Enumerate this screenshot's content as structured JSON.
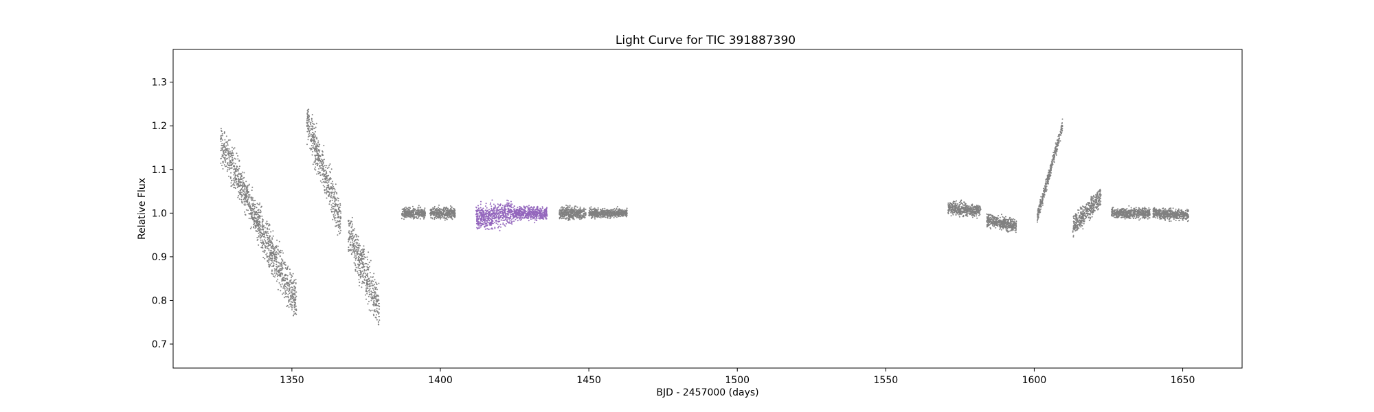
{
  "chart_data": {
    "type": "scatter",
    "title": "Light Curve for TIC 391887390",
    "xlabel": "BJD - 2457000 (days)",
    "ylabel": "Relative Flux",
    "xlim": [
      1310,
      1670
    ],
    "ylim": [
      0.645,
      1.375
    ],
    "xticks": [
      1350,
      1400,
      1450,
      1500,
      1550,
      1600,
      1650
    ],
    "yticks": [
      0.7,
      0.8,
      0.9,
      1.0,
      1.1,
      1.2,
      1.3
    ],
    "grid": false,
    "colors": {
      "data": "#808080",
      "highlight": "#9467bd"
    },
    "series": [
      {
        "color": "#808080",
        "segments": [
          {
            "x_start": 1326.0,
            "x_end": 1339.5,
            "y_start": 1.16,
            "y_end": 0.97,
            "scatter": 0.035
          },
          {
            "x_start": 1339.5,
            "x_end": 1351.5,
            "y_start": 0.96,
            "y_end": 0.8,
            "scatter": 0.04
          },
          {
            "x_start": 1355.0,
            "x_end": 1366.5,
            "y_start": 1.21,
            "y_end": 0.98,
            "scatter": 0.035
          },
          {
            "x_start": 1369.0,
            "x_end": 1379.5,
            "y_start": 0.96,
            "y_end": 0.78,
            "scatter": 0.04
          },
          {
            "x_start": 1387.0,
            "x_end": 1395.0,
            "y_start": 1.0,
            "y_end": 1.0,
            "scatter": 0.01
          },
          {
            "x_start": 1396.5,
            "x_end": 1405.0,
            "y_start": 1.0,
            "y_end": 1.0,
            "scatter": 0.01
          },
          {
            "x_start": 1440.0,
            "x_end": 1449.0,
            "y_start": 1.0,
            "y_end": 1.0,
            "scatter": 0.012
          },
          {
            "x_start": 1450.0,
            "x_end": 1463.0,
            "y_start": 1.0,
            "y_end": 1.0,
            "scatter": 0.008
          },
          {
            "x_start": 1571.0,
            "x_end": 1582.0,
            "y_start": 1.012,
            "y_end": 1.005,
            "scatter": 0.012
          },
          {
            "x_start": 1584.0,
            "x_end": 1594.0,
            "y_start": 0.985,
            "y_end": 0.97,
            "scatter": 0.012
          },
          {
            "x_start": 1601.0,
            "x_end": 1609.5,
            "y_start": 0.99,
            "y_end": 1.2,
            "scatter": 0.012
          },
          {
            "x_start": 1613.0,
            "x_end": 1622.5,
            "y_start": 0.97,
            "y_end": 1.04,
            "scatter": 0.018
          },
          {
            "x_start": 1626.0,
            "x_end": 1639.0,
            "y_start": 1.0,
            "y_end": 1.0,
            "scatter": 0.01
          },
          {
            "x_start": 1640.0,
            "x_end": 1652.0,
            "y_start": 1.0,
            "y_end": 0.995,
            "scatter": 0.01
          }
        ]
      },
      {
        "color": "#9467bd",
        "segments": [
          {
            "x_start": 1412.0,
            "x_end": 1425.0,
            "y_start": 0.99,
            "y_end": 1.0,
            "scatter": 0.022
          },
          {
            "x_start": 1425.0,
            "x_end": 1436.0,
            "y_start": 1.0,
            "y_end": 1.0,
            "scatter": 0.012
          }
        ]
      }
    ]
  }
}
